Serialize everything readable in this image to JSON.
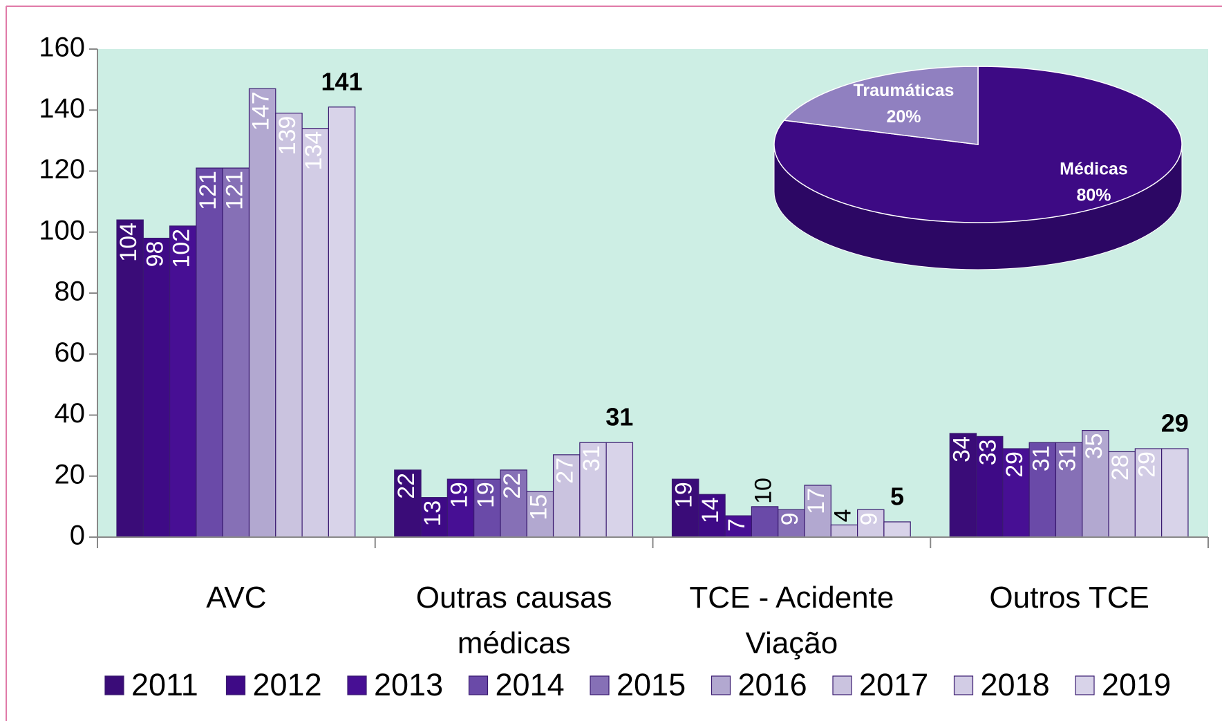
{
  "chart_data": [
    {
      "type": "bar",
      "categories": [
        "AVC",
        "Outras causas médicas",
        "TCE - Acidente Viação",
        "Outros TCE"
      ],
      "series": [
        {
          "name": "2011",
          "color": "#3a0c78",
          "values": [
            104,
            22,
            19,
            34
          ]
        },
        {
          "name": "2012",
          "color": "#3e0a86",
          "values": [
            98,
            13,
            14,
            33
          ]
        },
        {
          "name": "2013",
          "color": "#470f94",
          "values": [
            102,
            19,
            7,
            29
          ]
        },
        {
          "name": "2014",
          "color": "#6a4aa8",
          "values": [
            121,
            19,
            10,
            31
          ]
        },
        {
          "name": "2015",
          "color": "#8670b6",
          "values": [
            121,
            22,
            9,
            31
          ]
        },
        {
          "name": "2016",
          "color": "#b2a8d0",
          "values": [
            147,
            15,
            17,
            35
          ]
        },
        {
          "name": "2017",
          "color": "#cac3df",
          "values": [
            139,
            27,
            4,
            28
          ]
        },
        {
          "name": "2018",
          "color": "#d2cce5",
          "values": [
            134,
            31,
            9,
            29
          ]
        },
        {
          "name": "2019",
          "color": "#d8d3e9",
          "values": [
            141,
            31,
            5,
            29
          ]
        }
      ],
      "ylim": [
        0,
        160
      ],
      "yticks": [
        0,
        20,
        40,
        60,
        80,
        100,
        120,
        140,
        160
      ]
    },
    {
      "type": "pie",
      "categories": [
        "Médicas",
        "Traumáticas"
      ],
      "values": [
        80,
        20
      ],
      "value_labels": [
        "80%",
        "20%"
      ],
      "colors": [
        "#3d0a84",
        "#9080c0"
      ]
    }
  ]
}
